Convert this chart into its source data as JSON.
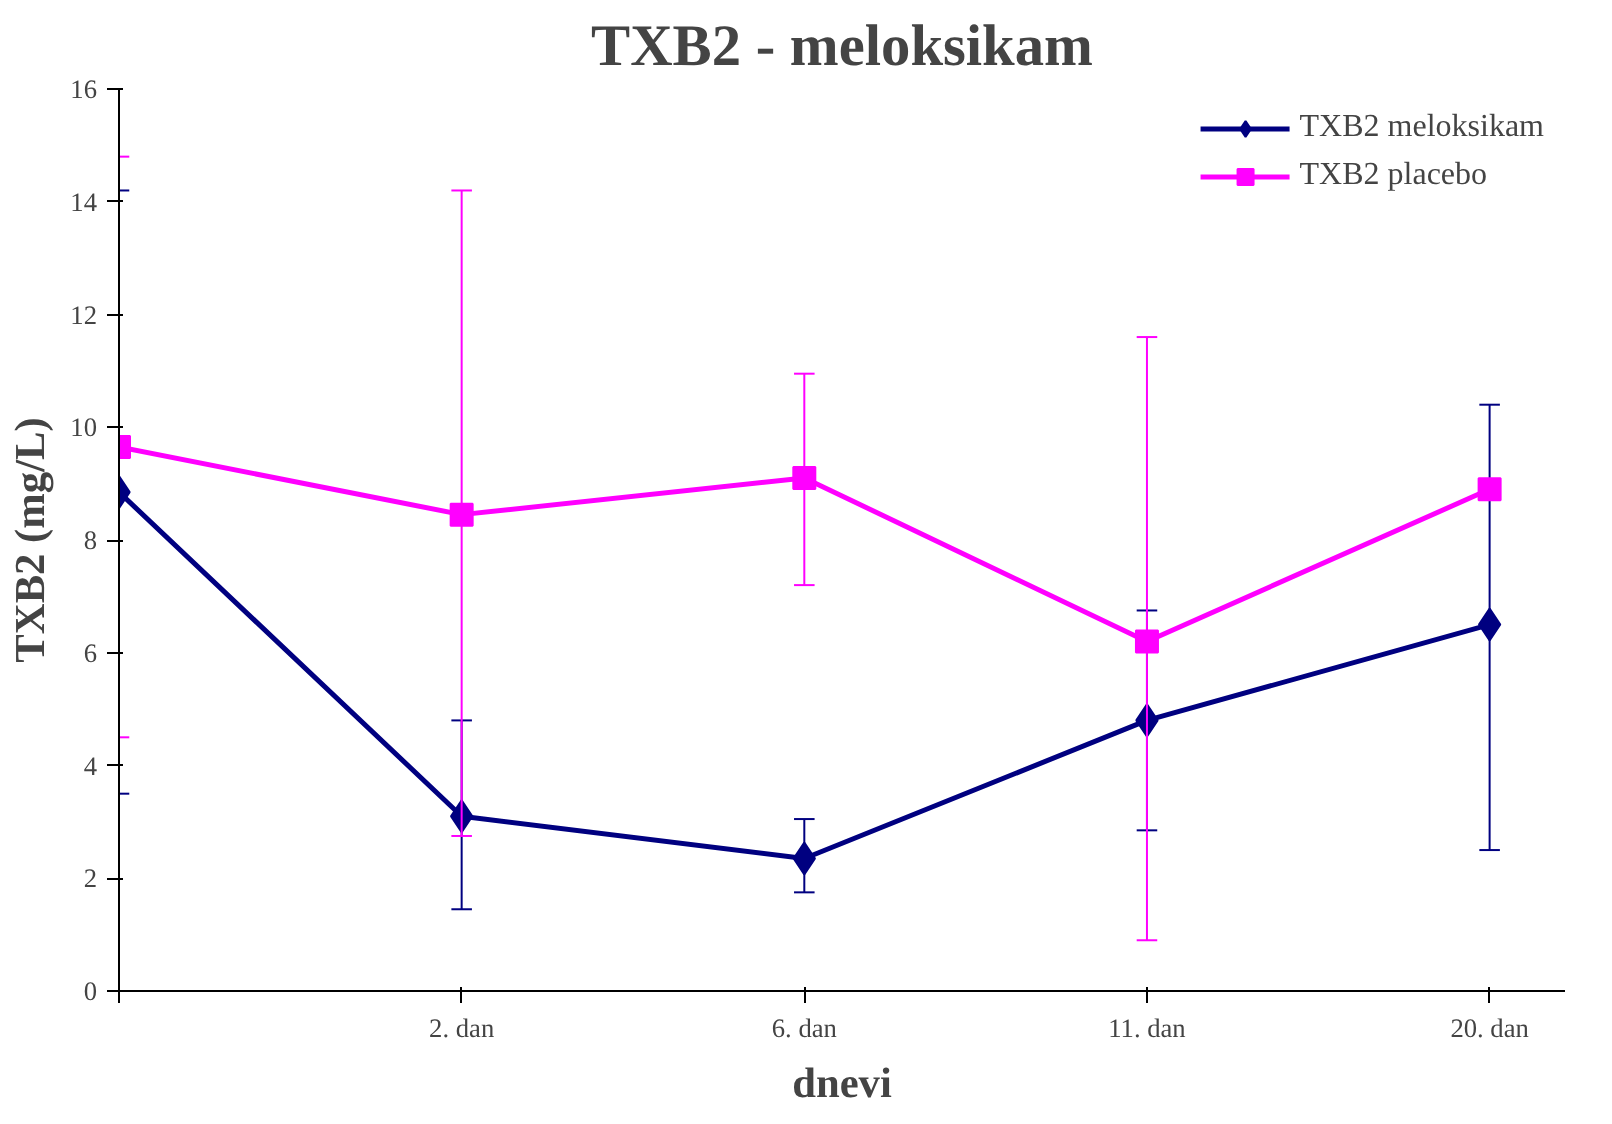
{
  "chart_data": {
    "type": "line",
    "title": "TXB2 - meloksikam",
    "xlabel": "dnevi",
    "ylabel": "TXB2 (mg/L)",
    "categories": [
      null,
      "2. dan",
      "6. dan",
      "11. dan",
      "20. dan"
    ],
    "series": [
      {
        "name": "TXB2 meloksikam",
        "color": "#000080",
        "marker": "diamond",
        "values": [
          8.85,
          3.1,
          2.35,
          4.8,
          6.5
        ],
        "errors": [
          [
            3.5,
            14.2
          ],
          [
            1.45,
            4.8
          ],
          [
            1.75,
            3.05
          ],
          [
            2.85,
            6.75
          ],
          [
            2.5,
            10.4
          ]
        ]
      },
      {
        "name": "TXB2 placebo",
        "color": "#ff00ff",
        "marker": "square",
        "values": [
          9.65,
          8.45,
          9.1,
          6.2,
          8.9
        ],
        "errors": [
          [
            4.5,
            14.8
          ],
          [
            2.75,
            14.2
          ],
          [
            7.2,
            10.95
          ],
          [
            0.9,
            11.6
          ],
          null
        ]
      }
    ],
    "ylim": [
      0,
      16
    ],
    "yticks": [
      0,
      2,
      4,
      6,
      8,
      10,
      12,
      14,
      16
    ],
    "grid": false,
    "legend": "top right",
    "line_style": "solid"
  }
}
